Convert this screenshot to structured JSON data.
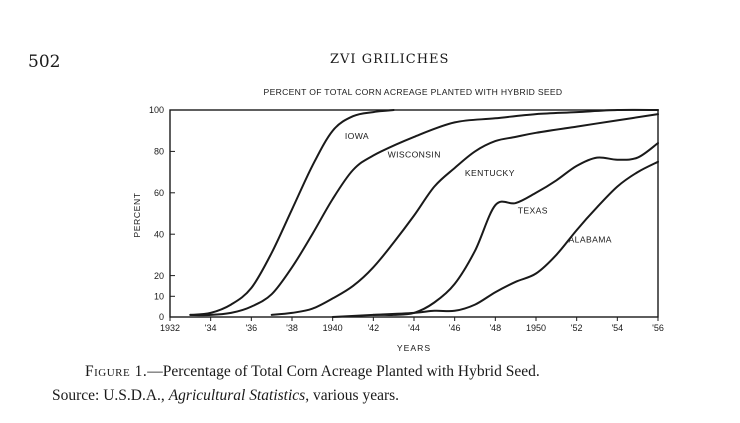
{
  "page": {
    "number": "502",
    "running_head": "ZVI GRILICHES"
  },
  "caption": {
    "label": "Figure 1.",
    "dash": "—",
    "text": "Percentage of Total Corn Acreage Planted with Hybrid Seed.",
    "source_prefix": "Source: U.S.D.A., ",
    "source_title": "Agricultural Statistics",
    "source_suffix": ", various years."
  },
  "chart_data": {
    "type": "line",
    "title": "PERCENT OF TOTAL CORN ACREAGE PLANTED WITH HYBRID SEED",
    "xlabel": "YEARS",
    "ylabel": "PERCENT",
    "xlim": [
      1932,
      1956
    ],
    "ylim": [
      0,
      100
    ],
    "x_ticks": [
      1932,
      1934,
      1936,
      1938,
      1940,
      1942,
      1944,
      1946,
      1948,
      1950,
      1952,
      1954,
      1956
    ],
    "x_tick_labels": [
      "1932",
      "'34",
      "'36",
      "'38",
      "1940",
      "'42",
      "'44",
      "'46",
      "'48",
      "1950",
      "'52",
      "'54",
      "'56"
    ],
    "y_ticks": [
      0,
      10,
      20,
      40,
      60,
      80,
      100
    ],
    "y_tick_labels": [
      "0",
      "10",
      "20",
      "40",
      "60",
      "80",
      "100"
    ],
    "grid": false,
    "series": [
      {
        "name": "IOWA",
        "x": [
          1933,
          1934,
          1935,
          1936,
          1937,
          1938,
          1939,
          1940,
          1941,
          1942,
          1943
        ],
        "values": [
          1,
          2,
          6,
          14,
          31,
          52,
          73,
          90,
          97,
          99,
          100
        ]
      },
      {
        "name": "WISCONSIN",
        "x": [
          1933,
          1934,
          1935,
          1936,
          1937,
          1938,
          1939,
          1940,
          1941,
          1942,
          1944,
          1946,
          1948,
          1950,
          1952,
          1954,
          1956
        ],
        "values": [
          1,
          1,
          2,
          5,
          11,
          24,
          40,
          57,
          71,
          78,
          87,
          94,
          96,
          98,
          99,
          100,
          100
        ]
      },
      {
        "name": "KENTUCKY",
        "x": [
          1937,
          1938,
          1939,
          1940,
          1941,
          1942,
          1943,
          1944,
          1945,
          1946,
          1947,
          1948,
          1949,
          1950,
          1952,
          1954,
          1956
        ],
        "values": [
          1,
          2,
          4,
          9,
          15,
          24,
          36,
          49,
          63,
          72,
          80,
          85,
          87,
          89,
          92,
          95,
          98
        ]
      },
      {
        "name": "TEXAS",
        "x": [
          1940,
          1942,
          1943,
          1944,
          1945,
          1946,
          1947,
          1948,
          1949,
          1950,
          1951,
          1952,
          1953,
          1954,
          1955,
          1956
        ],
        "values": [
          0,
          1,
          1,
          2,
          7,
          16,
          32,
          54,
          55,
          60,
          66,
          73,
          77,
          76,
          77,
          84
        ]
      },
      {
        "name": "ALABAMA",
        "x": [
          1942,
          1944,
          1945,
          1946,
          1947,
          1948,
          1949,
          1950,
          1951,
          1952,
          1953,
          1954,
          1955,
          1956
        ],
        "values": [
          1,
          2,
          3,
          3,
          6,
          12,
          17,
          21,
          30,
          42,
          53,
          63,
          70,
          75
        ]
      }
    ]
  }
}
